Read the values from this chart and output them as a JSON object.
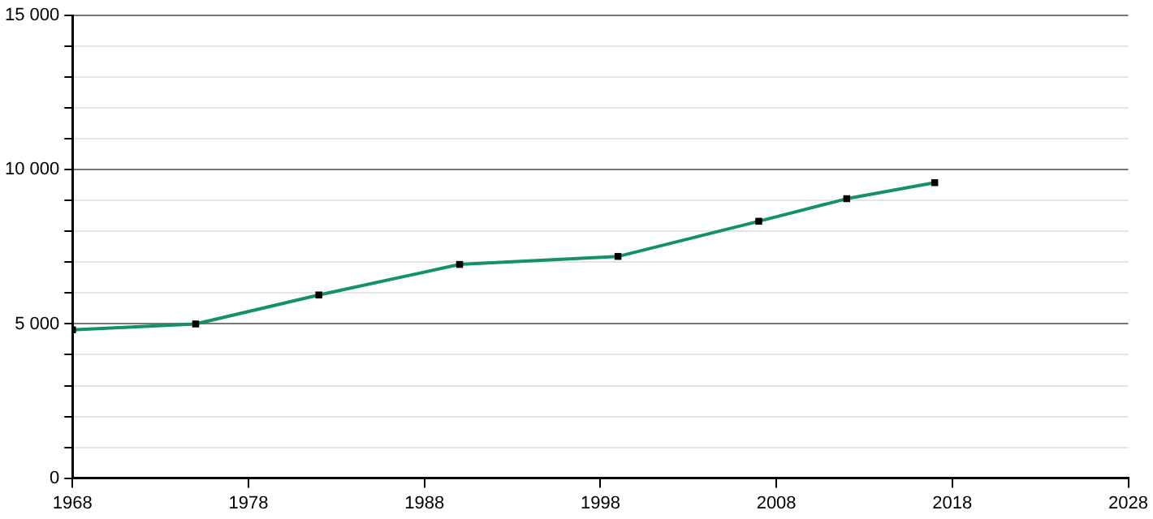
{
  "chart_data": {
    "type": "line",
    "x": [
      1968,
      1975,
      1982,
      1990,
      1999,
      2007,
      2012,
      2017
    ],
    "series": [
      {
        "color": "#14906a",
        "values": [
          4810,
          5000,
          5940,
          6930,
          7190,
          8330,
          9060,
          9580
        ]
      }
    ],
    "xlim": [
      1968,
      2028
    ],
    "xticks": [
      1968,
      1978,
      1988,
      1998,
      2008,
      2018,
      2028
    ],
    "ylim": [
      0,
      15000
    ],
    "yticks": [
      {
        "value": 0,
        "label": "0"
      },
      {
        "value": 1000,
        "label": null
      },
      {
        "value": 2000,
        "label": null
      },
      {
        "value": 3000,
        "label": null
      },
      {
        "value": 4000,
        "label": null
      },
      {
        "value": 5000,
        "label": "5 000"
      },
      {
        "value": 6000,
        "label": null
      },
      {
        "value": 7000,
        "label": null
      },
      {
        "value": 8000,
        "label": null
      },
      {
        "value": 9000,
        "label": null
      },
      {
        "value": 10000,
        "label": "10 000"
      },
      {
        "value": 11000,
        "label": null
      },
      {
        "value": 12000,
        "label": null
      },
      {
        "value": 13000,
        "label": null
      },
      {
        "value": 14000,
        "label": null
      },
      {
        "value": 15000,
        "label": "15 000"
      }
    ],
    "grid": "y",
    "marker": "square",
    "line_style": "solid",
    "legend": false
  }
}
